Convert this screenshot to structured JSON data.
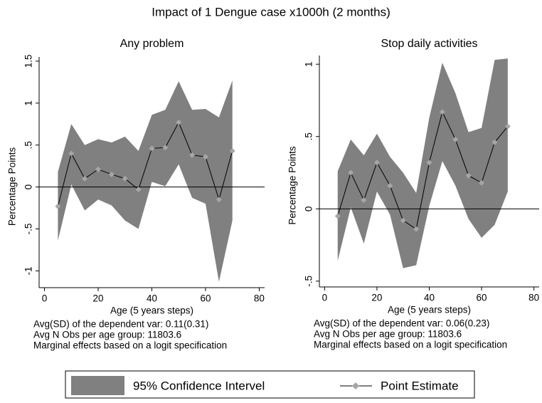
{
  "title": "Impact of 1 Dengue case x1000h (2 months)",
  "chart_data": [
    {
      "type": "line",
      "title": "Any problem",
      "xlabel": "Age (5 years steps)",
      "ylabel": "Percentage Points",
      "x": [
        5,
        10,
        15,
        20,
        25,
        30,
        35,
        40,
        45,
        50,
        55,
        60,
        65,
        70
      ],
      "series": [
        {
          "name": "95% Confidence Intervel",
          "color": "#808080",
          "upper": [
            0.18,
            0.75,
            0.5,
            0.57,
            0.53,
            0.6,
            0.43,
            0.86,
            0.92,
            1.26,
            0.92,
            0.93,
            0.83,
            1.27
          ],
          "lower": [
            -0.64,
            0.03,
            -0.28,
            -0.15,
            -0.22,
            -0.4,
            -0.5,
            0.06,
            0.01,
            0.27,
            -0.13,
            -0.2,
            -1.13,
            -0.4
          ]
        },
        {
          "name": "Point Estimate",
          "color": "#000000",
          "marker_color": "#a6a6a6",
          "values": [
            -0.23,
            0.4,
            0.1,
            0.21,
            0.15,
            0.1,
            -0.03,
            0.46,
            0.47,
            0.77,
            0.38,
            0.36,
            -0.15,
            0.43
          ]
        }
      ],
      "xlim": [
        -2,
        82
      ],
      "xticks": [
        0,
        20,
        40,
        60,
        80
      ],
      "ylim": [
        -1.2,
        1.55
      ],
      "yticks": [
        {
          "value": -1,
          "label": "-1"
        },
        {
          "value": -0.5,
          "label": "-.5"
        },
        0,
        {
          "value": 0.5,
          "label": ".5"
        },
        1,
        1.5
      ],
      "yline": 0,
      "notes": [
        "Avg(SD) of the dependent var: 0.11(0.31)",
        "Avg N Obs per age group:  11803.6",
        "Marginal effects based on a logit specification"
      ]
    },
    {
      "type": "line",
      "title": "Stop daily activities",
      "xlabel": "Age (5 years steps)",
      "ylabel": "Percentage Points",
      "x": [
        5,
        10,
        15,
        20,
        25,
        30,
        35,
        40,
        45,
        50,
        55,
        60,
        65,
        70
      ],
      "series": [
        {
          "name": "95% Confidence Intervel",
          "color": "#808080",
          "upper": [
            0.26,
            0.48,
            0.37,
            0.52,
            0.36,
            0.25,
            0.11,
            0.63,
            1.01,
            0.8,
            0.53,
            0.56,
            1.03,
            1.04
          ],
          "lower": [
            -0.36,
            0.01,
            -0.24,
            0.12,
            -0.04,
            -0.41,
            -0.39,
            0.02,
            0.33,
            0.16,
            -0.07,
            -0.2,
            -0.11,
            0.12
          ]
        },
        {
          "name": "Point Estimate",
          "color": "#000000",
          "marker_color": "#a6a6a6",
          "values": [
            -0.05,
            0.25,
            0.06,
            0.32,
            0.16,
            -0.08,
            -0.14,
            0.32,
            0.67,
            0.48,
            0.23,
            0.18,
            0.46,
            0.57
          ]
        }
      ],
      "xlim": [
        -2,
        82
      ],
      "xticks": [
        0,
        20,
        40,
        60,
        80
      ],
      "ylim": [
        -0.54,
        1.06
      ],
      "yticks": [
        {
          "value": -0.5,
          "label": "-.5"
        },
        0,
        {
          "value": 0.5,
          "label": ".5"
        },
        1
      ],
      "yline": 0,
      "notes": [
        "Avg(SD) of the dependent var: 0.06(0.23)",
        "Avg N Obs per age group:  11803.6",
        "Marginal effects based on a logit specification"
      ]
    }
  ]
}
